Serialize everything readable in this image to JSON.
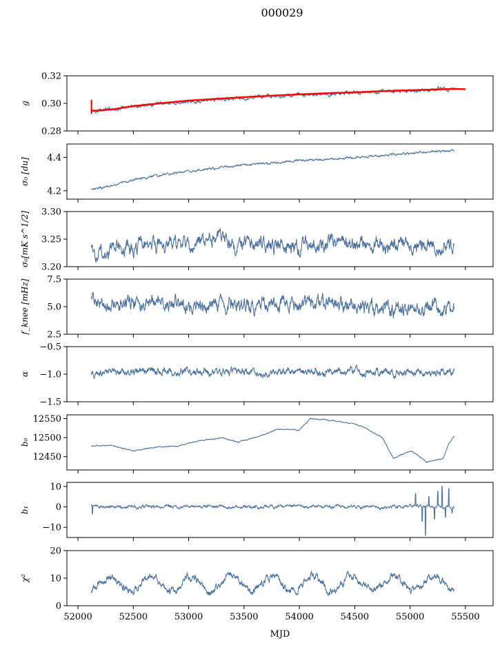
{
  "chart_data": {
    "type": "line",
    "title": "000029",
    "xlabel": "MJD",
    "xlim": [
      51900,
      55750
    ],
    "x_ticks": [
      "52000",
      "52500",
      "53000",
      "53500",
      "54000",
      "54500",
      "55000",
      "55500"
    ],
    "x_tick_values": [
      52000,
      52500,
      53000,
      53500,
      54000,
      54500,
      55000,
      55500
    ],
    "x_start": 52120,
    "x_end": 55400,
    "colors": {
      "series": "#4c72a0",
      "fit": "#ff0000"
    },
    "panels": [
      {
        "ylabel": "g",
        "ylim": [
          0.28,
          0.32
        ],
        "y_ticks": [
          "0.28",
          "0.30",
          "0.32"
        ],
        "y_tick_values": [
          0.28,
          0.3,
          0.32
        ],
        "x": [
          52120,
          52300,
          52500,
          52800,
          53000,
          53300,
          53500,
          53800,
          54000,
          54300,
          54500,
          54800,
          55000,
          55200,
          55400
        ],
        "y": [
          0.295,
          0.2955,
          0.298,
          0.3,
          0.3015,
          0.303,
          0.304,
          0.3055,
          0.306,
          0.307,
          0.3078,
          0.3088,
          0.3095,
          0.31,
          0.3105
        ],
        "noise": 0.0008,
        "fit": {
          "x": [
            52120,
            52300,
            52500,
            52800,
            53000,
            53300,
            53500,
            53800,
            54000,
            54300,
            54500,
            54800,
            55000,
            55200,
            55400,
            55500
          ],
          "y": [
            0.2945,
            0.2955,
            0.298,
            0.3005,
            0.302,
            0.3035,
            0.3045,
            0.3058,
            0.3065,
            0.3075,
            0.308,
            0.309,
            0.3095,
            0.31,
            0.3105,
            0.3103
          ]
        }
      },
      {
        "ylabel": "σ₀ [du]",
        "ylim": [
          4.15,
          4.48
        ],
        "y_ticks": [
          "4.2",
          "4.4"
        ],
        "y_tick_values": [
          4.2,
          4.4
        ],
        "x": [
          52120,
          52300,
          52500,
          52800,
          53000,
          53300,
          53500,
          53800,
          54000,
          54300,
          54500,
          54800,
          55000,
          55200,
          55400
        ],
        "y": [
          4.205,
          4.23,
          4.265,
          4.3,
          4.315,
          4.34,
          4.355,
          4.37,
          4.38,
          4.39,
          4.4,
          4.415,
          4.425,
          4.435,
          4.44
        ],
        "noise": 0.004
      },
      {
        "ylabel": "σ₀[mK s^1/2]",
        "ylim": [
          3.2,
          3.3
        ],
        "y_ticks": [
          "3.20",
          "3.25",
          "3.30"
        ],
        "y_tick_values": [
          3.2,
          3.25,
          3.3
        ],
        "x": [
          52120,
          52400,
          52700,
          53000,
          53250,
          53500,
          53800,
          54100,
          54400,
          54700,
          55000,
          55200,
          55400
        ],
        "y": [
          3.23,
          3.235,
          3.24,
          3.245,
          3.25,
          3.24,
          3.235,
          3.24,
          3.245,
          3.24,
          3.235,
          3.24,
          3.235
        ],
        "noise": 0.009
      },
      {
        "ylabel": "f_knee [mHz]",
        "ylim": [
          2.5,
          7.5
        ],
        "y_ticks": [
          "2.5",
          "5.0",
          "7.5"
        ],
        "y_tick_values": [
          2.5,
          5.0,
          7.5
        ],
        "x": [
          52120,
          52500,
          53000,
          53500,
          54000,
          54500,
          55000,
          55400
        ],
        "y": [
          5.4,
          5.3,
          5.2,
          5.1,
          5.3,
          5.0,
          4.9,
          4.8
        ],
        "noise": 0.45
      },
      {
        "ylabel": "α",
        "ylim": [
          -1.5,
          -0.5
        ],
        "y_ticks": [
          "−1.5",
          "−1.0",
          "−0.5"
        ],
        "y_tick_values": [
          -1.5,
          -1.0,
          -0.5
        ],
        "x": [
          52120,
          52500,
          53000,
          53500,
          54000,
          54500,
          55000,
          55400
        ],
        "y": [
          -0.97,
          -0.96,
          -0.95,
          -0.96,
          -0.95,
          -0.96,
          -0.97,
          -0.97
        ],
        "noise": 0.045
      },
      {
        "ylabel": "b₀",
        "ylim": [
          12415,
          12560
        ],
        "y_ticks": [
          "12450",
          "12500",
          "12550"
        ],
        "y_tick_values": [
          12450,
          12500,
          12550
        ],
        "x": [
          52120,
          52300,
          52500,
          52700,
          52900,
          53100,
          53300,
          53450,
          53650,
          53800,
          54000,
          54100,
          54300,
          54500,
          54600,
          54750,
          54850,
          55000,
          55050,
          55150,
          55200,
          55300,
          55350,
          55400
        ],
        "y": [
          12478,
          12480,
          12465,
          12475,
          12478,
          12492,
          12500,
          12488,
          12505,
          12522,
          12520,
          12550,
          12545,
          12535,
          12525,
          12500,
          12445,
          12465,
          12458,
          12435,
          12440,
          12445,
          12485,
          12505
        ],
        "noise": 0.8
      },
      {
        "ylabel": "b₁",
        "ylim": [
          -15,
          12
        ],
        "y_ticks": [
          "−10",
          "0",
          "10"
        ],
        "y_tick_values": [
          -10,
          0,
          10
        ],
        "x": [
          52120,
          52500,
          53000,
          53500,
          54000,
          54500,
          54800,
          55000,
          55400
        ],
        "y": [
          0.2,
          0.1,
          0.2,
          0.0,
          0.3,
          0.1,
          -0.5,
          0.4,
          0.0
        ],
        "noise": 0.5,
        "spikes": [
          {
            "x": 52130,
            "y": -3.5
          },
          {
            "x": 55050,
            "y": 6.5
          },
          {
            "x": 55110,
            "y": -7.0
          },
          {
            "x": 55140,
            "y": -14.0
          },
          {
            "x": 55170,
            "y": 5.0
          },
          {
            "x": 55220,
            "y": -6.0
          },
          {
            "x": 55250,
            "y": 7.5
          },
          {
            "x": 55290,
            "y": 10.0
          },
          {
            "x": 55320,
            "y": -5.0
          },
          {
            "x": 55350,
            "y": 9.0
          },
          {
            "x": 55380,
            "y": -3.0
          }
        ]
      },
      {
        "ylabel": "χ²",
        "ylim": [
          0,
          20
        ],
        "y_ticks": [
          "0",
          "10",
          "20"
        ],
        "y_tick_values": [
          0,
          10,
          20
        ],
        "x": [
          52120,
          55400
        ],
        "y": [
          8,
          8
        ],
        "seasonal": {
          "amplitude": 2.8,
          "period": 365.25,
          "phase": 52200
        },
        "noise": 0.9
      }
    ]
  }
}
